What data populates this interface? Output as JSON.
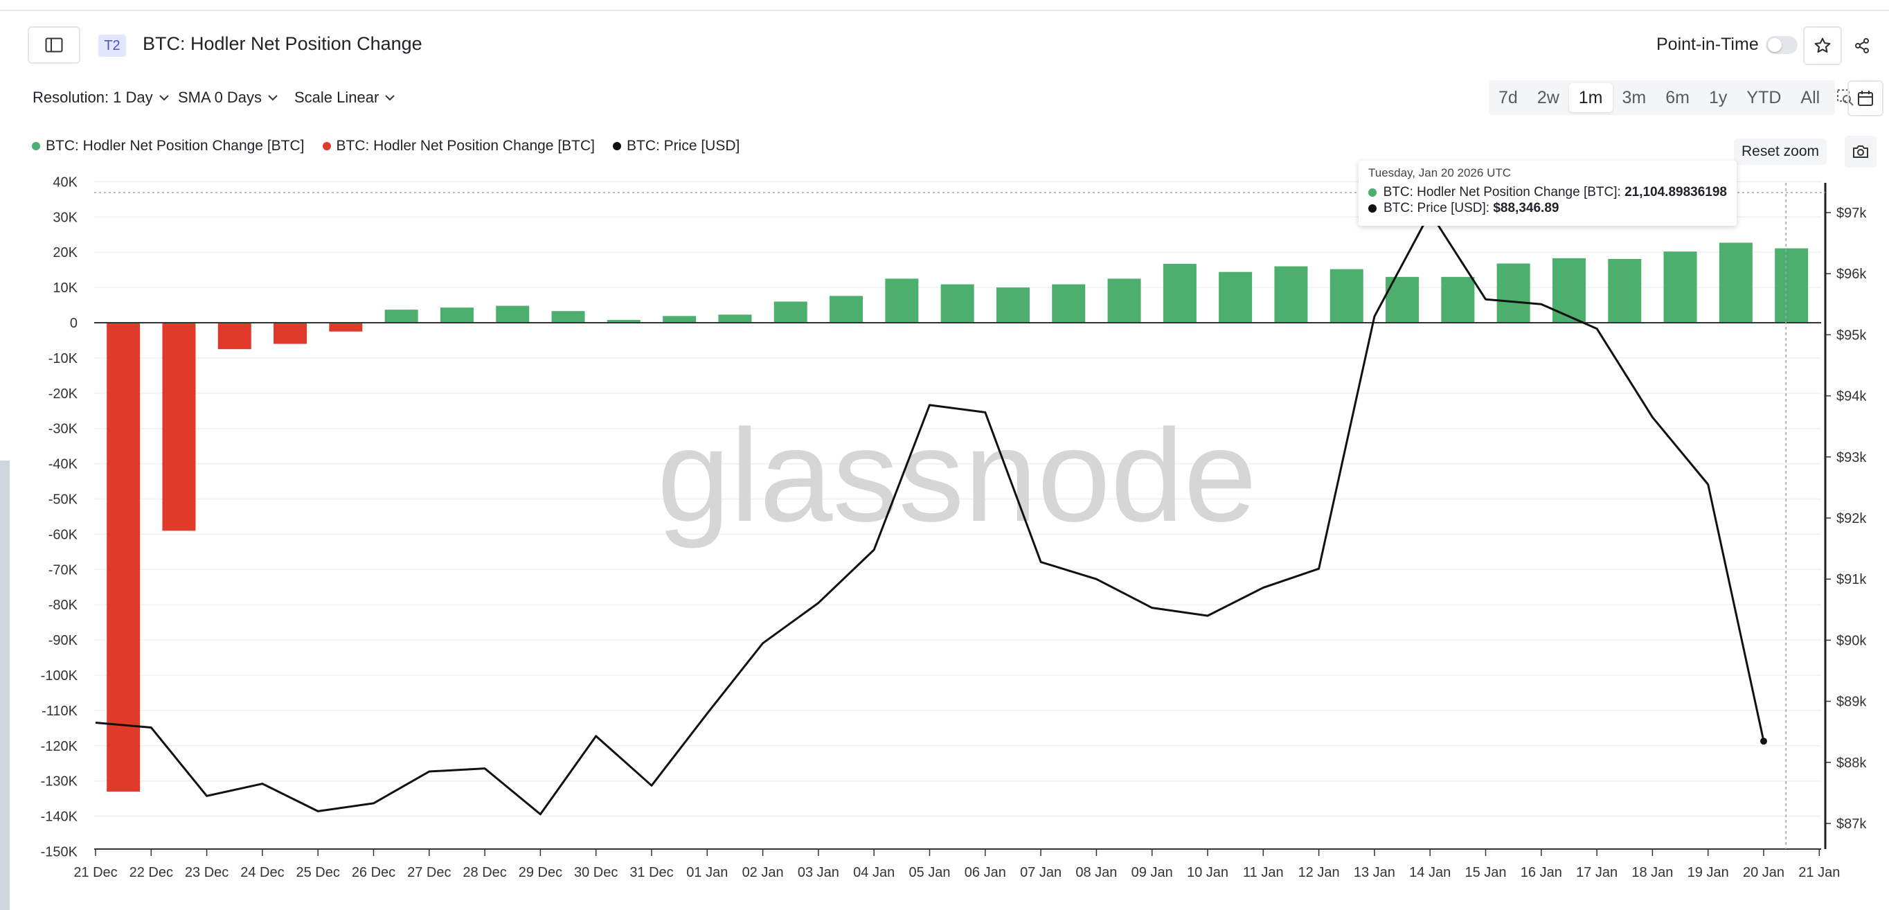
{
  "header": {
    "tier": "T2",
    "title": "BTC: Hodler Net Position Change",
    "point_in_time_label": "Point-in-Time"
  },
  "controls": {
    "resolution_label": "Resolution: 1 Day",
    "sma_label": "SMA 0 Days",
    "scale_label": "Scale Linear",
    "ranges": [
      "7d",
      "2w",
      "1m",
      "3m",
      "6m",
      "1y",
      "YTD",
      "All"
    ],
    "active_range": "1m"
  },
  "legend": [
    {
      "label": "BTC: Hodler Net Position Change [BTC]",
      "color": "#4caf6e"
    },
    {
      "label": "BTC: Hodler Net Position Change [BTC]",
      "color": "#e03a2a"
    },
    {
      "label": "BTC: Price [USD]",
      "color": "#111111"
    }
  ],
  "reset_zoom_label": "Reset zoom",
  "watermark": "glassnode",
  "tooltip": {
    "date": "Tuesday, Jan 20 2026 UTC",
    "rows": [
      {
        "label": "BTC: Hodler Net Position Change [BTC]: ",
        "value": "21,104.89836198",
        "color": "#4caf6e"
      },
      {
        "label": "BTC: Price [USD]: ",
        "value": "$88,346.89",
        "color": "#111111"
      }
    ]
  },
  "colors": {
    "positive": "#4caf6e",
    "negative": "#e03a2a",
    "price": "#111111",
    "grid": "#eef0f2"
  },
  "chart_data": {
    "type": "bar",
    "title": "BTC: Hodler Net Position Change",
    "categories": [
      "21 Dec",
      "22 Dec",
      "23 Dec",
      "24 Dec",
      "25 Dec",
      "26 Dec",
      "27 Dec",
      "28 Dec",
      "29 Dec",
      "30 Dec",
      "31 Dec",
      "01 Jan",
      "02 Jan",
      "03 Jan",
      "04 Jan",
      "05 Jan",
      "06 Jan",
      "07 Jan",
      "08 Jan",
      "09 Jan",
      "10 Jan",
      "11 Jan",
      "12 Jan",
      "13 Jan",
      "14 Jan",
      "15 Jan",
      "16 Jan",
      "17 Jan",
      "18 Jan",
      "19 Jan",
      "20 Jan"
    ],
    "x_ticks": [
      "21 Dec",
      "22 Dec",
      "23 Dec",
      "24 Dec",
      "25 Dec",
      "26 Dec",
      "27 Dec",
      "28 Dec",
      "29 Dec",
      "30 Dec",
      "31 Dec",
      "01 Jan",
      "02 Jan",
      "03 Jan",
      "04 Jan",
      "05 Jan",
      "06 Jan",
      "07 Jan",
      "08 Jan",
      "09 Jan",
      "10 Jan",
      "11 Jan",
      "12 Jan",
      "13 Jan",
      "14 Jan",
      "15 Jan",
      "16 Jan",
      "17 Jan",
      "18 Jan",
      "19 Jan",
      "20 Jan",
      "21 Jan"
    ],
    "series": [
      {
        "name": "BTC: Hodler Net Position Change [BTC]",
        "type": "bar",
        "axis": "left",
        "values": [
          -133000,
          -59000,
          -7500,
          -6000,
          -2500,
          3700,
          4300,
          4800,
          3300,
          800,
          1900,
          2300,
          6000,
          7600,
          12500,
          10900,
          10000,
          10900,
          12500,
          16700,
          14400,
          16000,
          15200,
          13000,
          13000,
          16800,
          18300,
          18100,
          20200,
          22700,
          21104.9
        ]
      },
      {
        "name": "BTC: Price [USD]",
        "type": "line",
        "axis": "right",
        "values": [
          88650,
          88570,
          87450,
          87650,
          87200,
          87330,
          87850,
          87900,
          87150,
          88430,
          87620,
          88800,
          89950,
          90610,
          91480,
          93850,
          93730,
          91280,
          91000,
          90530,
          90400,
          90860,
          91170,
          95300,
          97000,
          95580,
          95500,
          95100,
          93650,
          92550,
          88346.89
        ]
      }
    ],
    "y_left": {
      "ticks": [
        "40K",
        "30K",
        "20K",
        "10K",
        "0",
        "-10K",
        "-20K",
        "-30K",
        "-40K",
        "-50K",
        "-60K",
        "-70K",
        "-80K",
        "-90K",
        "-100K",
        "-110K",
        "-120K",
        "-130K",
        "-140K",
        "-150K"
      ],
      "range": [
        -150000,
        40000
      ]
    },
    "y_right": {
      "ticks": [
        "$97k",
        "$96k",
        "$95k",
        "$94k",
        "$93k",
        "$92k",
        "$91k",
        "$90k",
        "$89k",
        "$88k",
        "$87k"
      ],
      "range": [
        86700,
        97500
      ]
    },
    "grid": true,
    "legend_position": "top-left"
  }
}
